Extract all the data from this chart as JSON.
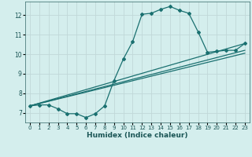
{
  "xlabel": "Humidex (Indice chaleur)",
  "bg_color": "#d4eeed",
  "grid_color": "#c0d8d8",
  "line_color": "#1a7070",
  "xlim": [
    -0.5,
    23.5
  ],
  "ylim": [
    6.5,
    12.7
  ],
  "xticks": [
    0,
    1,
    2,
    3,
    4,
    5,
    6,
    7,
    8,
    9,
    10,
    11,
    12,
    13,
    14,
    15,
    16,
    17,
    18,
    19,
    20,
    21,
    22,
    23
  ],
  "yticks": [
    7,
    8,
    9,
    10,
    11,
    12
  ],
  "curve1_x": [
    0,
    1,
    2,
    3,
    4,
    5,
    6,
    7,
    8,
    9,
    10,
    11,
    12,
    13,
    14,
    15,
    16,
    17,
    18,
    19,
    20,
    21,
    22,
    23
  ],
  "curve1_y": [
    7.35,
    7.4,
    7.4,
    7.2,
    6.95,
    6.95,
    6.75,
    6.95,
    7.35,
    8.65,
    9.75,
    10.65,
    12.05,
    12.1,
    12.3,
    12.45,
    12.25,
    12.1,
    11.15,
    10.1,
    10.15,
    10.2,
    10.2,
    10.55
  ],
  "curve2_x": [
    0,
    23
  ],
  "curve2_y": [
    7.35,
    10.55
  ],
  "curve3_x": [
    0,
    23
  ],
  "curve3_y": [
    7.35,
    10.2
  ],
  "curve4_x": [
    0,
    23
  ],
  "curve4_y": [
    7.35,
    10.05
  ],
  "markersize": 2.0,
  "linewidth": 0.9
}
